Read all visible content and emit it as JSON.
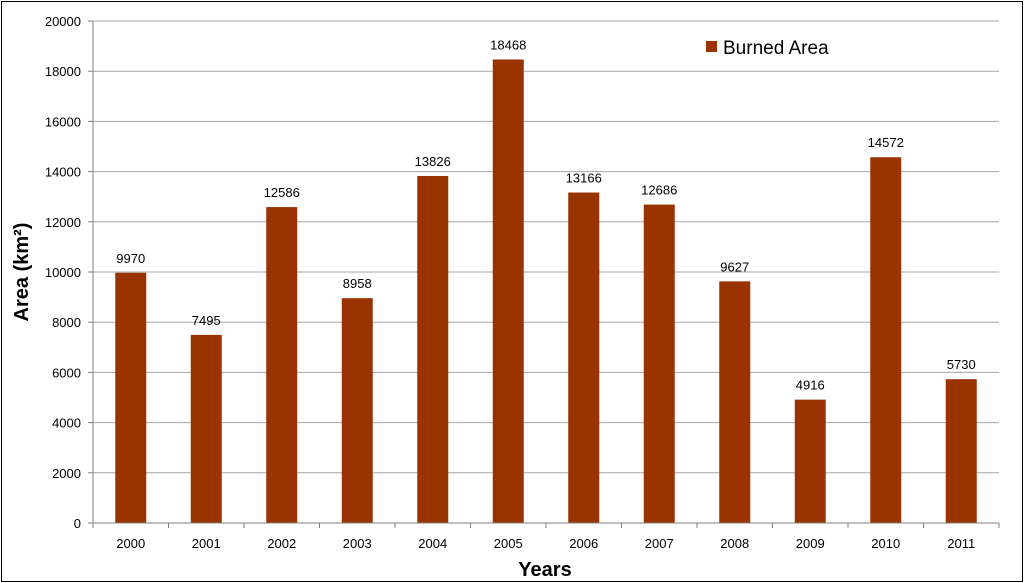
{
  "chart_data": {
    "type": "bar",
    "categories": [
      "2000",
      "2001",
      "2002",
      "2003",
      "2004",
      "2005",
      "2006",
      "2007",
      "2008",
      "2009",
      "2010",
      "2011"
    ],
    "series": [
      {
        "name": "Burned Area",
        "color": "#993300",
        "values": [
          9970,
          7495,
          12586,
          8958,
          13826,
          18468,
          13166,
          12686,
          9627,
          4916,
          14572,
          5730
        ]
      }
    ],
    "data_labels": [
      "9970",
      "7495",
      "12586",
      "8958",
      "13826",
      "18468",
      "13166",
      "12686",
      "9627",
      "4916",
      "14572",
      "5730"
    ],
    "xlabel": "Years",
    "ylabel": "Area (km²)",
    "ylim": [
      0,
      20000
    ],
    "yticks": [
      0,
      2000,
      4000,
      6000,
      8000,
      10000,
      12000,
      14000,
      16000,
      18000,
      20000
    ],
    "ytick_labels": [
      "0",
      "2000",
      "4000",
      "6000",
      "8000",
      "10000",
      "12000",
      "14000",
      "16000",
      "18000",
      "20000"
    ],
    "grid": "horizontal",
    "legend": "top-right"
  }
}
